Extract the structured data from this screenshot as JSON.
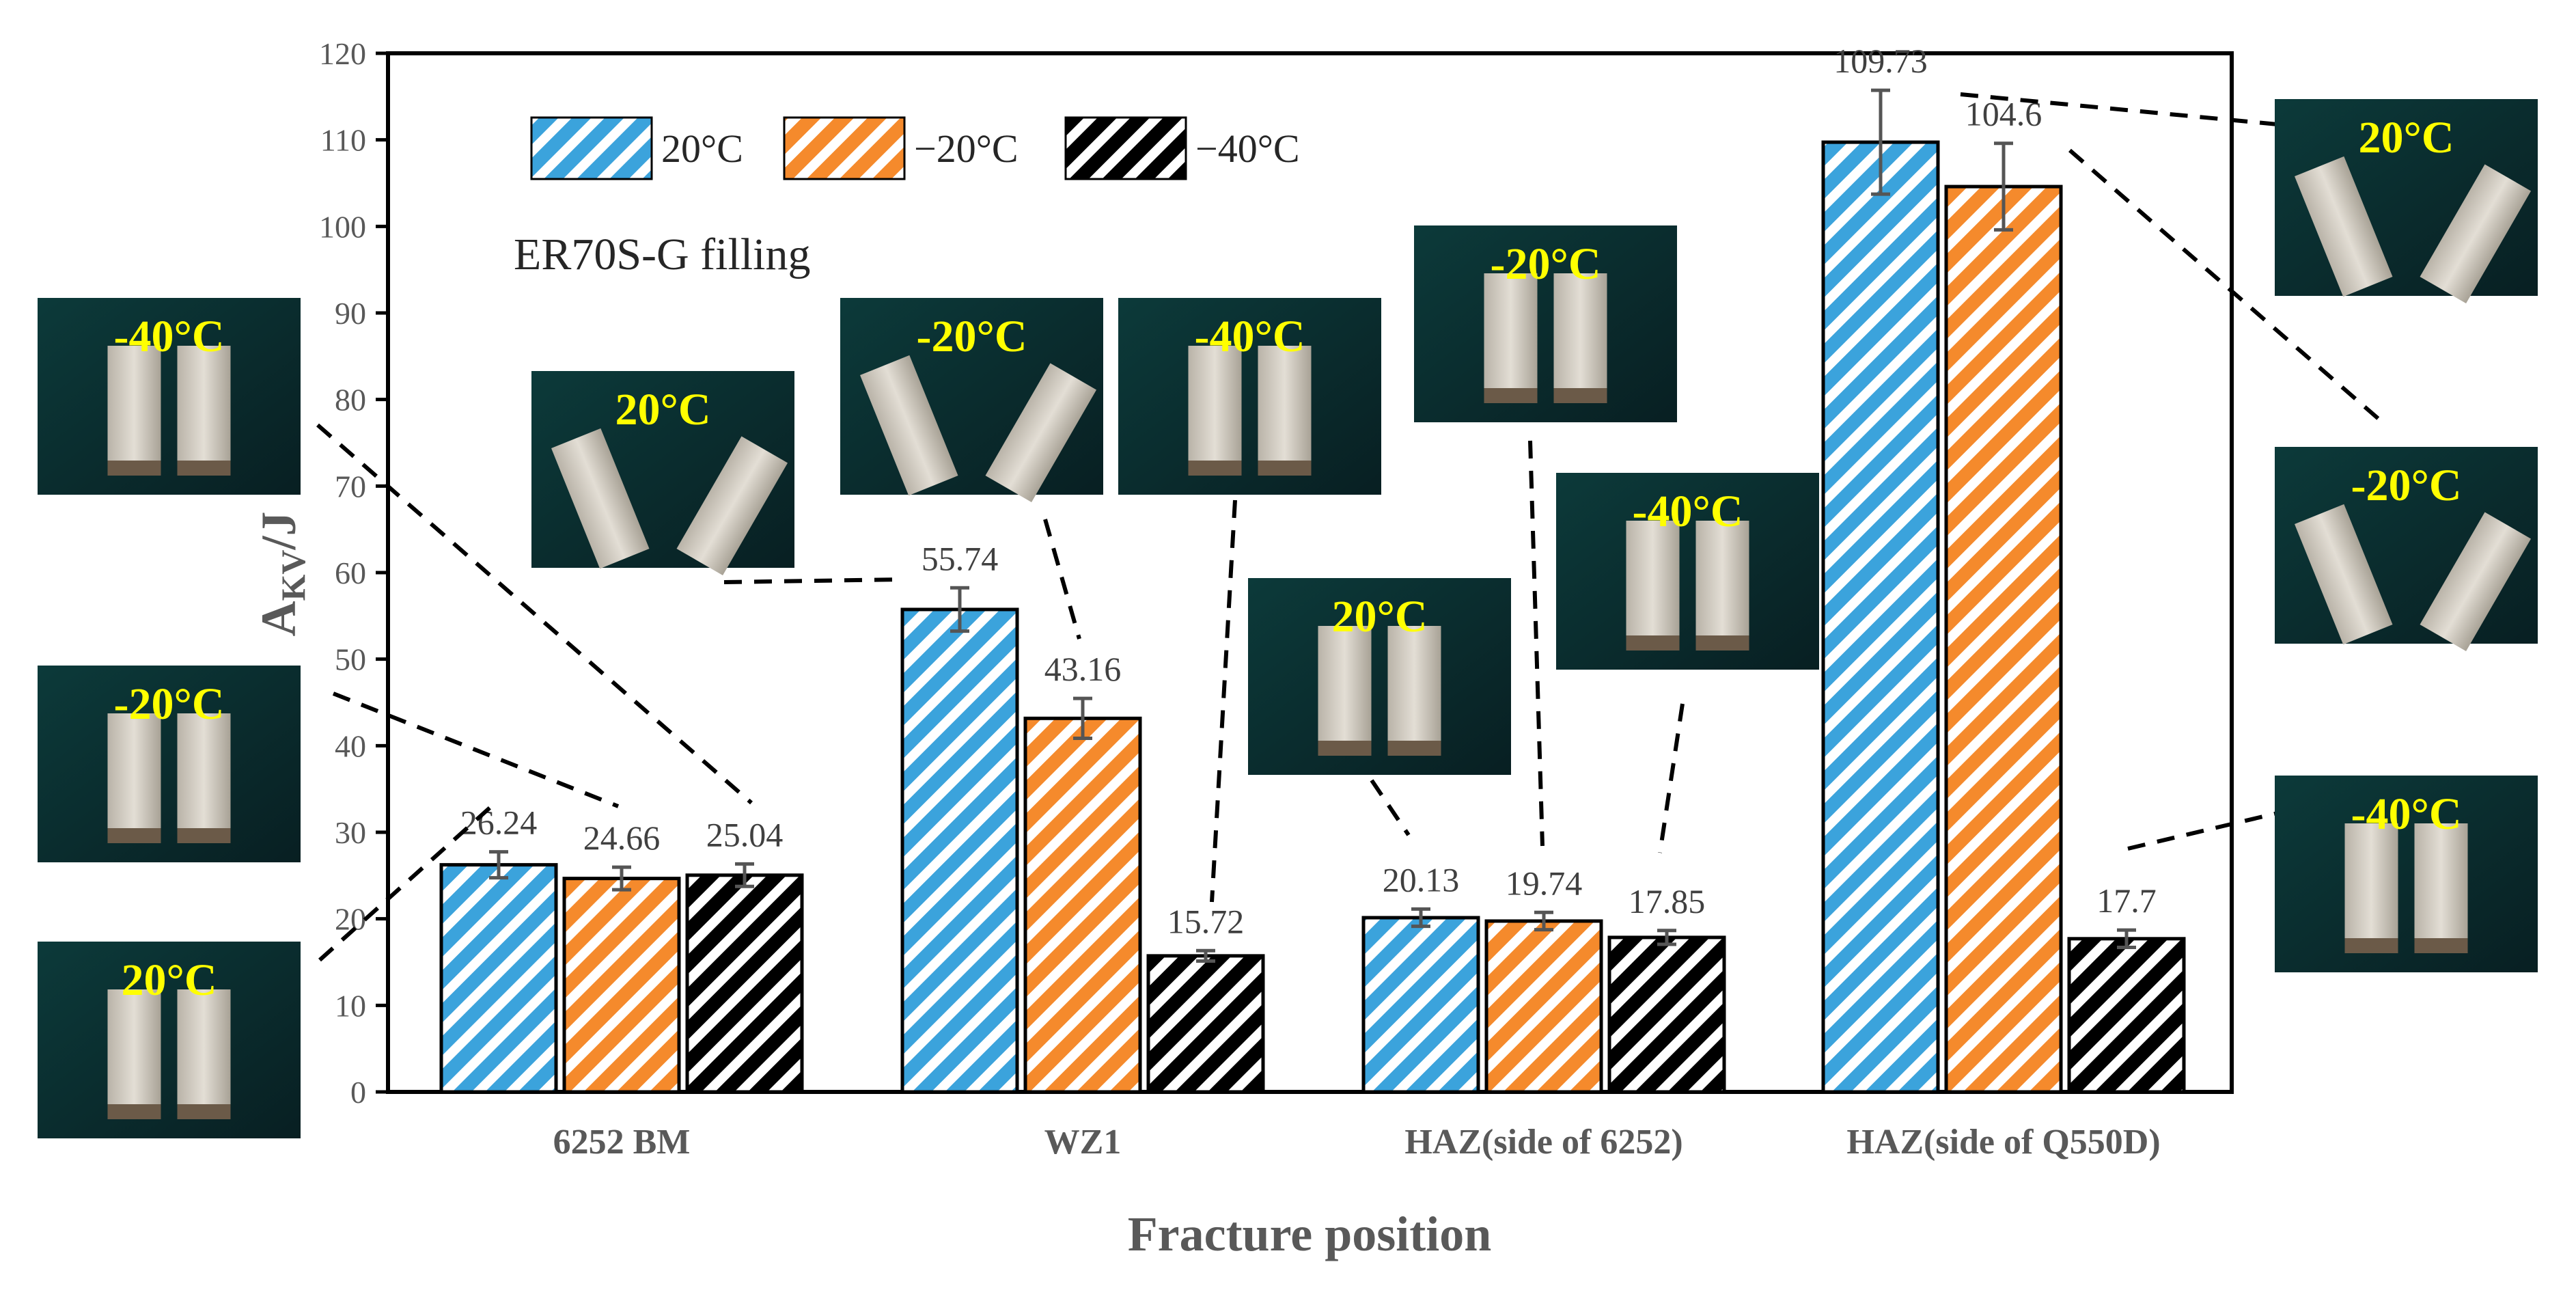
{
  "chart_data": {
    "type": "bar",
    "categories": [
      "6252 BM",
      "WZ1",
      "HAZ(side of 6252)",
      "HAZ(side of Q550D)"
    ],
    "series": [
      {
        "name": "20°C",
        "values": [
          26.24,
          55.74,
          20.13,
          109.73
        ],
        "errors": [
          1.5,
          2.5,
          1.0,
          6.0
        ],
        "color": "#3ba3dc"
      },
      {
        "name": "−20°C",
        "values": [
          24.66,
          43.16,
          19.74,
          104.6
        ],
        "errors": [
          1.3,
          2.3,
          1.0,
          5.0
        ],
        "color": "#f58a2c"
      },
      {
        "name": "−40°C",
        "values": [
          25.04,
          15.72,
          17.85,
          17.7
        ],
        "errors": [
          1.3,
          0.6,
          0.8,
          1.0
        ],
        "color": "#000000"
      }
    ],
    "value_labels": [
      [
        "26.24",
        "24.66",
        "25.04"
      ],
      [
        "55.74",
        "43.16",
        "15.72"
      ],
      [
        "20.13",
        "19.74",
        "17.85"
      ],
      [
        "109.73",
        "104.6",
        "17.7"
      ]
    ],
    "ylim": [
      0,
      120
    ],
    "yticks": [
      "0",
      "10",
      "20",
      "30",
      "40",
      "50",
      "60",
      "70",
      "80",
      "90",
      "100",
      "110",
      "120"
    ],
    "ylabel_main": "A",
    "ylabel_sub": "KV",
    "ylabel_tail": "/J",
    "xlabel": "Fracture position",
    "annotation": "ER70S-G filling",
    "legend_position": "top-left",
    "grid": false,
    "photo_labels": {
      "bm_40": "-40°C",
      "bm_20m": "-20°C",
      "bm_20": "20°C",
      "wz_20": "20°C",
      "wz_20m": "-20°C",
      "wz_40": "-40°C",
      "h1_20m": "-20°C",
      "h1_20": "20°C",
      "h1_40": "-40°C",
      "h2_20": "20°C",
      "h2_20m": "-20°C",
      "h2_40": "-40°C"
    }
  }
}
